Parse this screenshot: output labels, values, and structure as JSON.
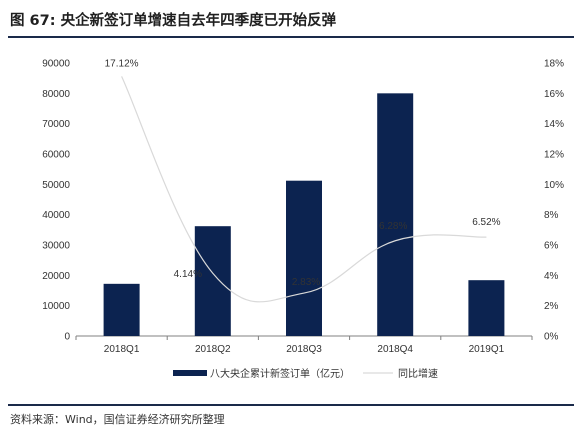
{
  "header": {
    "title": "图 67:  央企新签订单增速自去年四季度已开始反弹"
  },
  "footer": {
    "source": "资料来源：Wind，国信证券经济研究所整理"
  },
  "chart_data": {
    "type": "bar",
    "categories": [
      "2018Q1",
      "2018Q2",
      "2018Q3",
      "2018Q4",
      "2019Q1"
    ],
    "series": [
      {
        "name": "八大央企累计新签订单（亿元）",
        "type": "bar",
        "axis": "left",
        "values": [
          17200,
          36200,
          51200,
          80000,
          18400
        ],
        "color": "#0c2350"
      },
      {
        "name": "同比增速",
        "type": "line",
        "axis": "right",
        "values": [
          17.12,
          4.14,
          2.83,
          6.28,
          6.52
        ],
        "labels": [
          "17.12%",
          "4.14%",
          "2.83%",
          "6.28%",
          "6.52%"
        ],
        "color": "#d9d9d9"
      }
    ],
    "ylim": [
      0,
      90000
    ],
    "yticks": [
      "0",
      "10000",
      "20000",
      "30000",
      "40000",
      "50000",
      "60000",
      "70000",
      "80000",
      "90000"
    ],
    "y2lim": [
      0,
      18
    ],
    "y2ticks": [
      "0%",
      "2%",
      "4%",
      "6%",
      "8%",
      "10%",
      "12%",
      "14%",
      "16%",
      "18%"
    ],
    "legend": "bottom",
    "grid": false
  }
}
